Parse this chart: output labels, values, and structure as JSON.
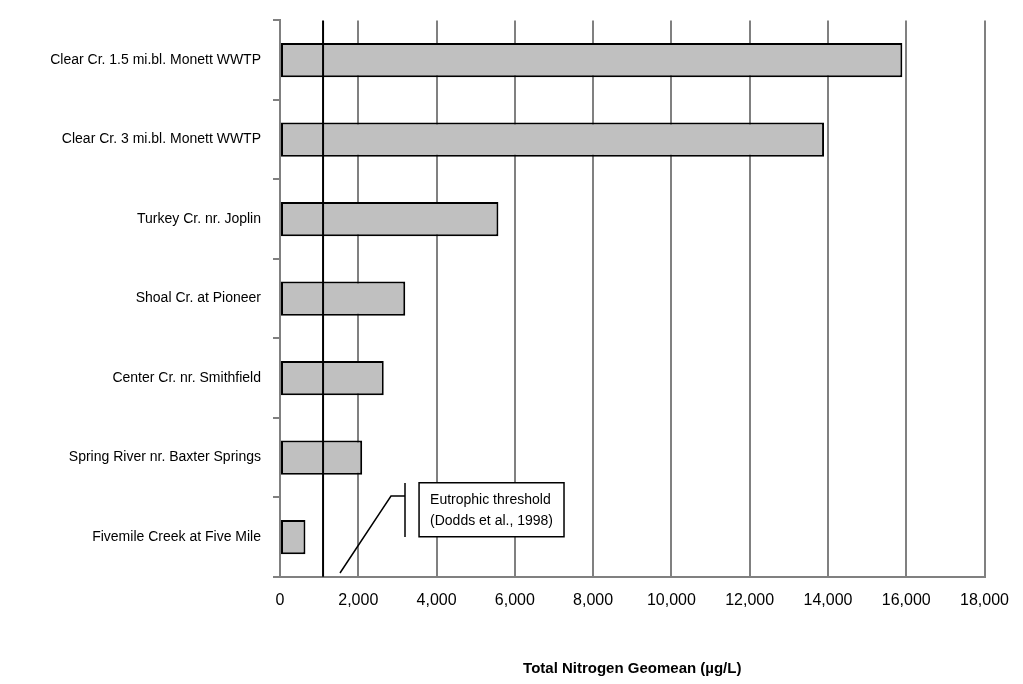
{
  "chart_data": {
    "type": "bar",
    "orientation": "horizontal",
    "xlabel": "Total Nitrogen Geomean (µg/L)",
    "categories": [
      "Clear Cr. 1.5 mi.bl. Monett WWTP",
      "Clear Cr. 3 mi.bl. Monett WWTP",
      "Turkey Cr. nr. Joplin",
      "Shoal Cr. at Pioneer",
      "Center Cr. nr. Smithfield",
      "Spring River nr. Baxter Springs",
      "Fivemile Creek at Five Mile"
    ],
    "values": [
      15900,
      13900,
      5580,
      3200,
      2650,
      2100,
      650
    ],
    "color": "#c0c0c0",
    "xlim": [
      0,
      18000
    ],
    "xticks": [
      0,
      {
        "value": 2000,
        "label": "2,000"
      },
      {
        "value": 4000,
        "label": "4,000"
      },
      {
        "value": 6000,
        "label": "6,000"
      },
      {
        "value": 8000,
        "label": "8,000"
      },
      {
        "value": 10000,
        "label": "10,000"
      },
      {
        "value": 12000,
        "label": "12,000"
      },
      {
        "value": 14000,
        "label": "14,000"
      },
      {
        "value": 16000,
        "label": "16,000"
      },
      {
        "value": 18000,
        "label": "18,000"
      }
    ],
    "grid": "x",
    "legend": false,
    "ref_lines": [
      {
        "axis": "x",
        "value": 1100,
        "label": "Eutrophic threshold (Dodds et al., 1998)",
        "color": "#000000"
      }
    ]
  }
}
